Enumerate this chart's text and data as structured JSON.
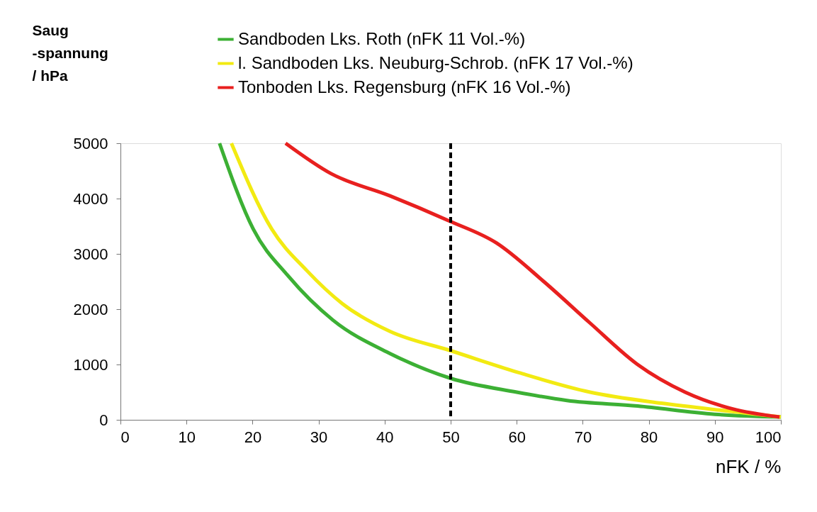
{
  "chart_data": {
    "type": "line",
    "xlabel": "nFK / %",
    "ylabel": "Saug\n-spannung\n/ hPa",
    "xlim": [
      0,
      100
    ],
    "xticks": [
      0,
      10,
      20,
      30,
      40,
      50,
      60,
      70,
      80,
      90,
      100
    ],
    "ylim": [
      0,
      5000
    ],
    "yticks": [
      0,
      1000,
      2000,
      3000,
      4000,
      5000
    ],
    "grid": false,
    "legend": "top",
    "marker": "none",
    "line_style": "solid",
    "series": [
      {
        "name": "Sandboden Lks. Roth (nFK 11 Vol.-%)",
        "color": "#3cb034",
        "x": [
          15,
          20.1,
          25.4,
          32.2,
          40.8,
          50,
          60,
          67.6,
          78.3,
          90,
          100
        ],
        "values": [
          5000,
          3450,
          2600,
          1800,
          1200,
          750,
          500,
          350,
          250,
          100,
          50
        ]
      },
      {
        "name": "l. Sandboden Lks. Neuburg-Schrob. (nFK 17 Vol.-%)",
        "color": "#f2ea12",
        "x": [
          16.8,
          22.9,
          28.2,
          33.6,
          40.8,
          50,
          60.4,
          71.1,
          81.9,
          92.6,
          100
        ],
        "values": [
          5000,
          3450,
          2700,
          2100,
          1600,
          1250,
          850,
          500,
          300,
          150,
          50
        ]
      },
      {
        "name": "Tonboden Lks. Regensburg (nFK 16 Vol.-%)",
        "color": "#e8201f",
        "x": [
          25,
          31.9,
          40.8,
          49.7,
          56.9,
          64.1,
          71.1,
          78.3,
          85.5,
          92.6,
          99.8
        ],
        "values": [
          5000,
          4450,
          4050,
          3600,
          3200,
          2500,
          1750,
          1000,
          500,
          200,
          50
        ]
      }
    ],
    "ref_lines": [
      {
        "axis": "x",
        "value": 50,
        "color": "#000000",
        "line_style": "dashed"
      }
    ]
  }
}
